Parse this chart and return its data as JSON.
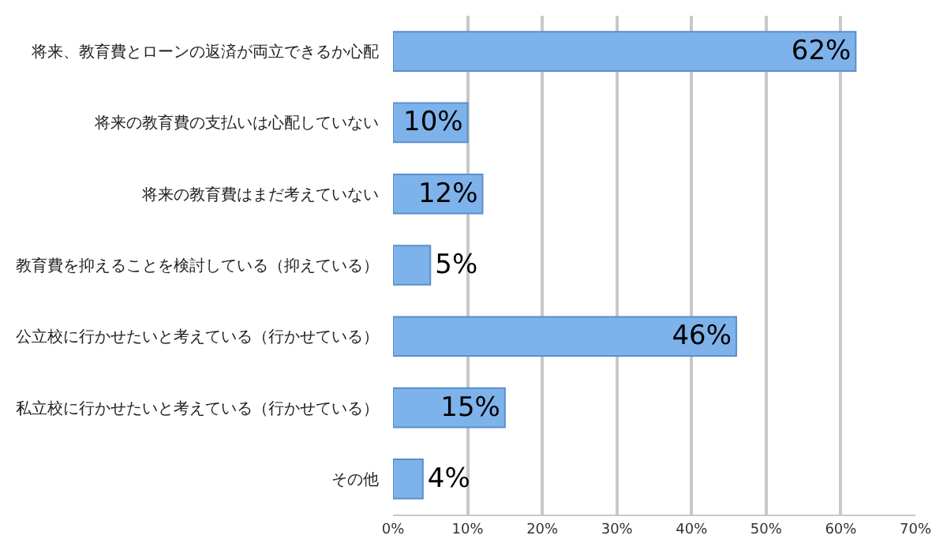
{
  "chart_data": {
    "type": "bar",
    "orientation": "horizontal",
    "categories": [
      "将来、教育費とローンの返済が両立できるか心配",
      "将来の教育費の支払いは心配していない",
      "将来の教育費はまだ考えていない",
      "教育費を抑えることを検討している（抑えている）",
      "公立校に行かせたいと考えている（行かせている）",
      "私立校に行かせたいと考えている（行かせている）",
      "その他"
    ],
    "values": [
      62,
      10,
      12,
      5,
      46,
      15,
      4
    ],
    "value_labels": [
      "62%",
      "10%",
      "12%",
      "5%",
      "46%",
      "15%",
      "4%"
    ],
    "color": "#7eb2ea",
    "xlim": [
      0,
      70
    ],
    "xticks": [
      {
        "value": 0,
        "label": "0%"
      },
      {
        "value": 10,
        "label": "10%"
      },
      {
        "value": 20,
        "label": "20%"
      },
      {
        "value": 30,
        "label": "30%"
      },
      {
        "value": 40,
        "label": "40%"
      },
      {
        "value": 50,
        "label": "50%"
      },
      {
        "value": 60,
        "label": "60%"
      },
      {
        "value": 70,
        "label": "70%"
      }
    ],
    "grid": "x",
    "legend": false
  }
}
